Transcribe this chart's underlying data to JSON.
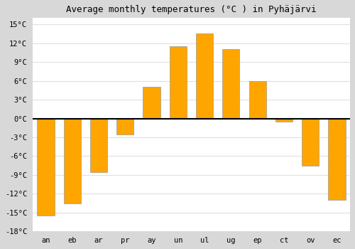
{
  "title": "Average monthly temperatures (°C ) in Pyhäjärvi",
  "month_labels": [
    "an",
    "eb",
    "ar",
    "pr",
    "ay",
    "un",
    "ul",
    "ug",
    "ep",
    "ct",
    "ov",
    "ec"
  ],
  "values": [
    -15.5,
    -13.5,
    -8.5,
    -2.5,
    5.0,
    11.5,
    13.5,
    11.0,
    6.0,
    -0.5,
    -7.5,
    -13.0
  ],
  "bar_color": "#FFA500",
  "bar_edge_color": "#999999",
  "outer_background": "#d8d8d8",
  "plot_background": "#ffffff",
  "ylim": [
    -18,
    16
  ],
  "yticks": [
    -18,
    -15,
    -12,
    -9,
    -6,
    -3,
    0,
    3,
    6,
    9,
    12,
    15
  ],
  "ytick_labels": [
    "-18°C",
    "-15°C",
    "-12°C",
    "-9°C",
    "-6°C",
    "-3°C",
    "0°C",
    "3°C",
    "6°C",
    "9°C",
    "12°C",
    "15°C"
  ],
  "zero_line_color": "#000000",
  "grid_color": "#e0e0e0",
  "title_fontsize": 9,
  "tick_fontsize": 7.5
}
